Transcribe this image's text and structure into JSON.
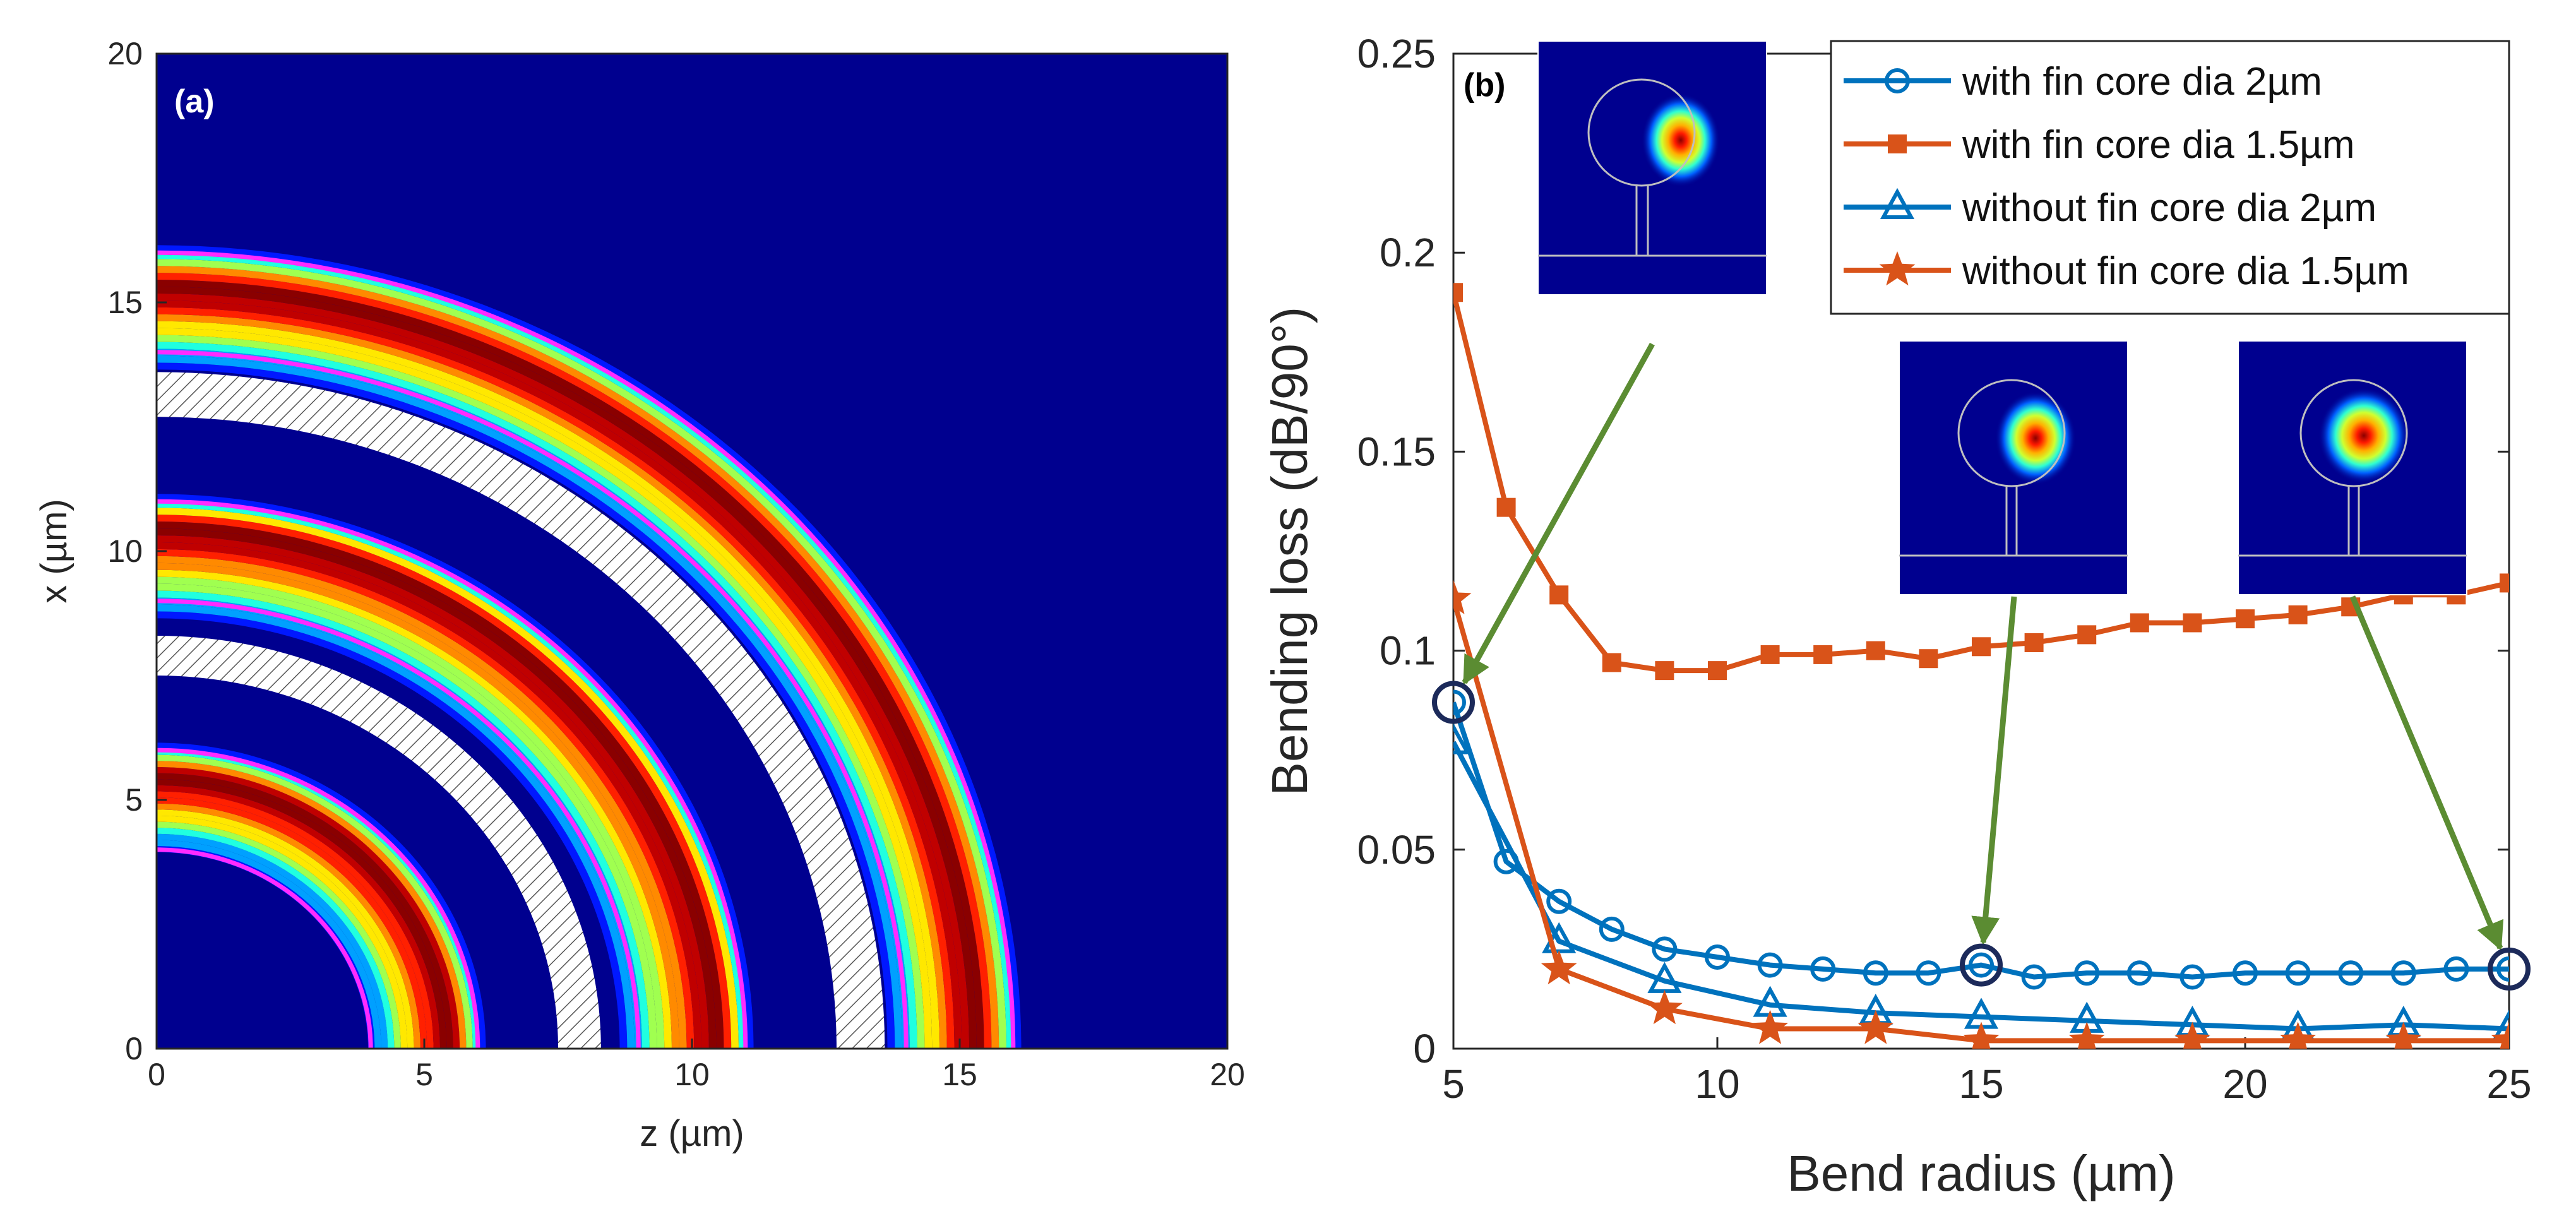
{
  "chart_data": [
    {
      "type": "heatmap",
      "panel_label": "(a)",
      "title": "",
      "xlabel": "z (µm)",
      "ylabel": "x (µm)",
      "xlim": [
        0,
        20
      ],
      "ylim": [
        0,
        20
      ],
      "xticks": [
        "0",
        "5",
        "10",
        "15",
        "20"
      ],
      "yticks": [
        "0",
        "5",
        "10",
        "15",
        "20"
      ],
      "grid": false,
      "field_rings_um": [
        {
          "inner": 4.3,
          "center": 5.45,
          "outer": 6.1
        },
        {
          "inner": 9.0,
          "center": 10.45,
          "outer": 11.1
        },
        {
          "inner": 14.0,
          "center": 15.3,
          "outer": 16.1
        }
      ],
      "magenta_arcs_um": [
        4.0,
        6.0,
        9.0,
        11.0,
        14.0,
        16.0
      ],
      "hatched_rings_um": [
        {
          "inner": 7.5,
          "outer": 8.3
        },
        {
          "inner": 12.7,
          "outer": 13.6
        }
      ],
      "colors": {
        "background": "#00008f",
        "magenta": "#ff2bff"
      }
    },
    {
      "type": "line",
      "panel_label": "(b)",
      "title": "",
      "xlabel": "Bend radius (µm)",
      "ylabel": "Bending loss (dB/90°)",
      "xlim": [
        5,
        25
      ],
      "ylim": [
        0,
        0.25
      ],
      "xticks": [
        "5",
        "10",
        "15",
        "20",
        "25"
      ],
      "yticks": [
        "0",
        "0.05",
        "0.1",
        "0.15",
        "0.2",
        "0.25"
      ],
      "grid": false,
      "legend_position": "top-right",
      "series": [
        {
          "name": "with fin core dia 2µm",
          "marker": "circle",
          "color": "#0072bd",
          "x": [
            5,
            6,
            7,
            8,
            9,
            10,
            11,
            12,
            13,
            14,
            15,
            16,
            17,
            18,
            19,
            20,
            21,
            22,
            23,
            24,
            25
          ],
          "y": [
            0.087,
            0.047,
            0.037,
            0.03,
            0.025,
            0.023,
            0.021,
            0.02,
            0.019,
            0.019,
            0.021,
            0.018,
            0.019,
            0.019,
            0.018,
            0.019,
            0.019,
            0.019,
            0.019,
            0.02,
            0.02
          ]
        },
        {
          "name": "with fin core dia 1.5µm",
          "marker": "square",
          "color": "#d95319",
          "x": [
            5,
            6,
            7,
            8,
            9,
            10,
            11,
            12,
            13,
            14,
            15,
            16,
            17,
            18,
            19,
            20,
            21,
            22,
            23,
            24,
            25
          ],
          "y": [
            0.19,
            0.136,
            0.114,
            0.097,
            0.095,
            0.095,
            0.099,
            0.099,
            0.1,
            0.098,
            0.101,
            0.102,
            0.104,
            0.107,
            0.107,
            0.108,
            0.109,
            0.111,
            0.114,
            0.114,
            0.117
          ]
        },
        {
          "name": "without fin core dia 2µm",
          "marker": "triangle",
          "color": "#0072bd",
          "x": [
            5,
            7,
            9,
            11,
            13,
            15,
            17,
            19,
            21,
            23,
            25
          ],
          "y": [
            0.077,
            0.027,
            0.017,
            0.011,
            0.009,
            0.008,
            0.007,
            0.006,
            0.005,
            0.006,
            0.005
          ]
        },
        {
          "name": "without fin core dia 1.5µm",
          "marker": "star",
          "color": "#d95319",
          "x": [
            5,
            7,
            9,
            11,
            13,
            15,
            17,
            19,
            21,
            23,
            25
          ],
          "y": [
            0.113,
            0.02,
            0.01,
            0.005,
            0.005,
            0.002,
            0.002,
            0.002,
            0.002,
            0.002,
            0.002
          ]
        }
      ],
      "highlighted_points": [
        {
          "x": 5,
          "y": 0.087
        },
        {
          "x": 15,
          "y": 0.021
        },
        {
          "x": 25,
          "y": 0.02
        }
      ],
      "annotation_arrow_color": "#5b8c32",
      "highlight_circle_color": "#1c2a5a"
    }
  ]
}
